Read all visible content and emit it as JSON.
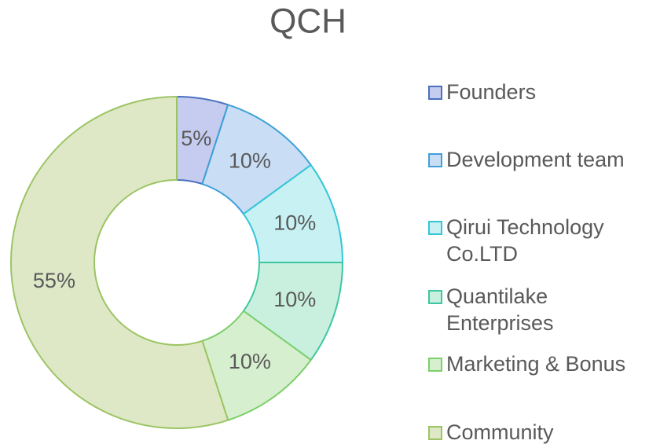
{
  "chart_data": {
    "type": "donut",
    "title": "QCH",
    "categories": [
      "Founders",
      "Development team",
      "Qirui Technology Co.LTD",
      "Quantilake Enterprises",
      "Marketing & Bonus",
      "Community"
    ],
    "values": [
      5,
      10,
      10,
      10,
      10,
      55
    ],
    "value_labels": [
      "5%",
      "10%",
      "10%",
      "10%",
      "10%",
      "55%"
    ],
    "colors": [
      "#c6ccf0",
      "#c9ddf5",
      "#c8f1f3",
      "#c9efdf",
      "#d6efcf",
      "#dee8c7"
    ],
    "edge_colors": [
      "#4a6fbf",
      "#3ea0d8",
      "#33c6d6",
      "#3cc8a0",
      "#7ccf6a",
      "#9cc463"
    ],
    "legend": "right"
  }
}
